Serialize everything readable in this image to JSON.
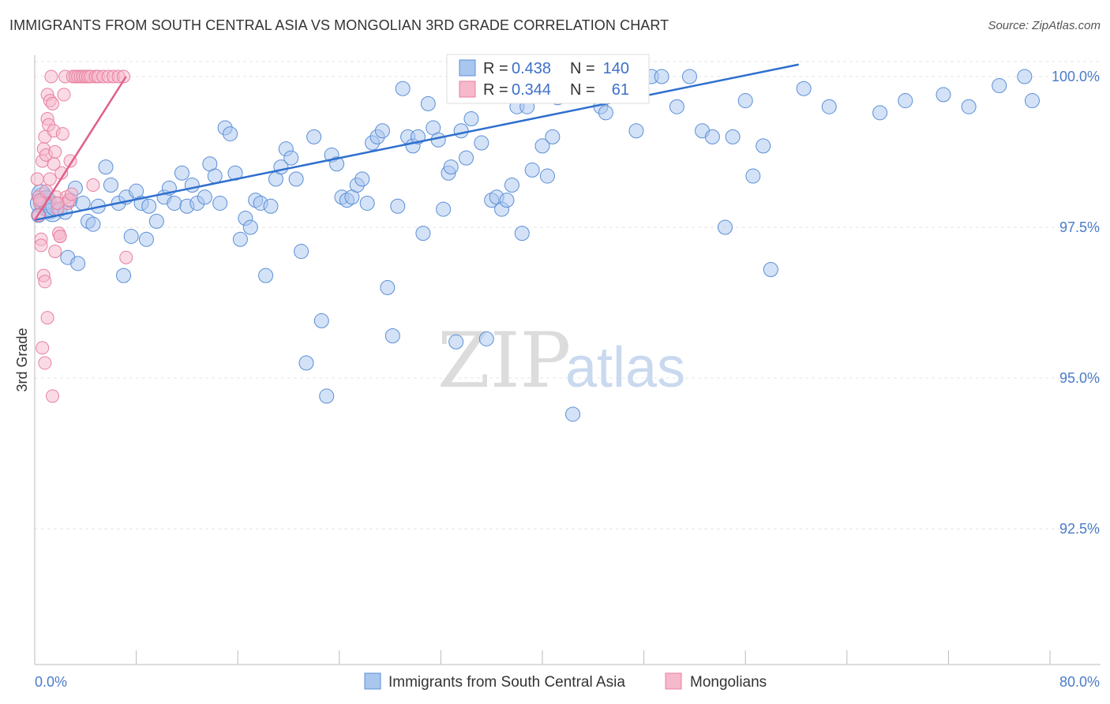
{
  "title": "IMMIGRANTS FROM SOUTH CENTRAL ASIA VS MONGOLIAN 3RD GRADE CORRELATION CHART",
  "source": "Source: ZipAtlas.com",
  "watermark": {
    "zip": "ZIP",
    "atlas": "atlas"
  },
  "colors": {
    "blue_fill": "#a9c6ef",
    "blue_stroke": "#5b8fd6",
    "blue_line": "#2f6fce",
    "pink_fill": "#f6b8cb",
    "pink_stroke": "#e8809f",
    "pink_line": "#e0608a",
    "grid": "#e6e6e6",
    "tick_text": "#4a7cc9"
  },
  "stats": {
    "blue": {
      "r_label": "R =",
      "r_value": "0.438",
      "n_label": "N =",
      "n_value": "140"
    },
    "pink": {
      "r_label": "R =",
      "r_value": "0.344",
      "n_label": "N =",
      "n_value": "61"
    }
  },
  "chart_data": {
    "type": "scatter",
    "title": "IMMIGRANTS FROM SOUTH CENTRAL ASIA VS MONGOLIAN 3RD GRADE CORRELATION CHART",
    "xlabel": "",
    "ylabel": "3rd Grade",
    "xlim": [
      0,
      80
    ],
    "ylim": [
      90.1,
      100.2
    ],
    "x_tick_labels": [
      "0.0%",
      "80.0%"
    ],
    "y_ticks": [
      100.0,
      97.5,
      95.0,
      92.5
    ],
    "y_tick_labels": [
      "100.0%",
      "97.5%",
      "95.0%",
      "92.5%"
    ],
    "grid": true,
    "legend_position": "bottom-center",
    "series": [
      {
        "name": "Immigrants from South Central Asia",
        "color": "#a9c6ef",
        "trend": {
          "x": [
            0,
            60.2
          ],
          "y": [
            97.62,
            100.2
          ]
        },
        "points": [
          [
            0.4,
            97.9
          ],
          [
            0.6,
            98.0
          ],
          [
            0.8,
            97.85
          ],
          [
            1.0,
            97.9
          ],
          [
            1.2,
            97.8
          ],
          [
            0.5,
            98.05
          ],
          [
            0.9,
            97.95
          ],
          [
            1.4,
            97.75
          ],
          [
            0.3,
            97.7
          ],
          [
            1.6,
            97.85
          ],
          [
            2.0,
            97.8
          ],
          [
            2.4,
            97.75
          ],
          [
            2.8,
            97.95
          ],
          [
            3.2,
            98.15
          ],
          [
            3.8,
            97.9
          ],
          [
            2.6,
            97.0
          ],
          [
            3.4,
            96.9
          ],
          [
            4.2,
            97.6
          ],
          [
            4.6,
            97.55
          ],
          [
            5.0,
            97.85
          ],
          [
            5.6,
            98.5
          ],
          [
            6.0,
            98.2
          ],
          [
            6.6,
            97.9
          ],
          [
            7.2,
            98.0
          ],
          [
            7.6,
            97.35
          ],
          [
            7.0,
            96.7
          ],
          [
            8.0,
            98.1
          ],
          [
            8.4,
            97.9
          ],
          [
            9.0,
            97.85
          ],
          [
            9.6,
            97.6
          ],
          [
            8.8,
            97.3
          ],
          [
            10.2,
            98.0
          ],
          [
            10.6,
            98.15
          ],
          [
            11.0,
            97.9
          ],
          [
            11.6,
            98.4
          ],
          [
            12.0,
            97.85
          ],
          [
            12.4,
            98.2
          ],
          [
            12.8,
            97.9
          ],
          [
            13.4,
            98.0
          ],
          [
            13.8,
            98.55
          ],
          [
            14.2,
            98.35
          ],
          [
            14.6,
            97.9
          ],
          [
            15.0,
            99.15
          ],
          [
            15.4,
            99.05
          ],
          [
            15.8,
            98.4
          ],
          [
            16.2,
            97.3
          ],
          [
            16.6,
            97.65
          ],
          [
            17.0,
            97.5
          ],
          [
            17.4,
            97.95
          ],
          [
            17.8,
            97.9
          ],
          [
            18.2,
            96.7
          ],
          [
            18.6,
            97.85
          ],
          [
            19.0,
            98.3
          ],
          [
            19.4,
            98.5
          ],
          [
            19.8,
            98.8
          ],
          [
            20.2,
            98.65
          ],
          [
            20.6,
            98.3
          ],
          [
            21.0,
            97.1
          ],
          [
            21.4,
            95.25
          ],
          [
            22.0,
            99.0
          ],
          [
            22.6,
            95.95
          ],
          [
            23.0,
            94.7
          ],
          [
            23.4,
            98.7
          ],
          [
            23.8,
            98.55
          ],
          [
            24.2,
            98.0
          ],
          [
            24.6,
            97.95
          ],
          [
            25.0,
            98.0
          ],
          [
            25.4,
            98.2
          ],
          [
            25.8,
            98.3
          ],
          [
            26.2,
            97.9
          ],
          [
            26.6,
            98.9
          ],
          [
            27.0,
            99.0
          ],
          [
            27.4,
            99.1
          ],
          [
            27.8,
            96.5
          ],
          [
            28.2,
            95.7
          ],
          [
            28.6,
            97.85
          ],
          [
            29.0,
            99.8
          ],
          [
            29.4,
            99.0
          ],
          [
            29.8,
            98.85
          ],
          [
            30.2,
            99.0
          ],
          [
            30.6,
            97.4
          ],
          [
            31.0,
            99.55
          ],
          [
            31.4,
            99.15
          ],
          [
            31.8,
            98.95
          ],
          [
            32.2,
            97.8
          ],
          [
            32.6,
            98.4
          ],
          [
            32.8,
            98.5
          ],
          [
            33.2,
            95.6
          ],
          [
            33.6,
            99.1
          ],
          [
            34.0,
            98.65
          ],
          [
            34.4,
            99.3
          ],
          [
            34.8,
            99.85
          ],
          [
            35.2,
            98.9
          ],
          [
            35.6,
            95.65
          ],
          [
            36.0,
            97.95
          ],
          [
            36.4,
            98.0
          ],
          [
            36.8,
            97.8
          ],
          [
            37.2,
            97.95
          ],
          [
            37.6,
            98.2
          ],
          [
            38.0,
            99.5
          ],
          [
            38.4,
            97.4
          ],
          [
            38.8,
            99.5
          ],
          [
            39.2,
            98.45
          ],
          [
            39.6,
            100.0
          ],
          [
            40.0,
            98.85
          ],
          [
            40.4,
            98.35
          ],
          [
            40.8,
            99.0
          ],
          [
            41.2,
            99.65
          ],
          [
            42.0,
            99.75
          ],
          [
            42.4,
            94.4
          ],
          [
            43.0,
            100.0
          ],
          [
            43.4,
            100.0
          ],
          [
            43.8,
            100.0
          ],
          [
            44.2,
            100.0
          ],
          [
            44.6,
            99.5
          ],
          [
            45.0,
            99.4
          ],
          [
            45.6,
            100.0
          ],
          [
            47.0,
            100.0
          ],
          [
            47.4,
            99.1
          ],
          [
            48.6,
            100.0
          ],
          [
            49.4,
            100.0
          ],
          [
            50.6,
            99.5
          ],
          [
            51.6,
            100.0
          ],
          [
            52.6,
            99.1
          ],
          [
            53.4,
            99.0
          ],
          [
            54.4,
            97.5
          ],
          [
            55.0,
            99.0
          ],
          [
            56.0,
            99.6
          ],
          [
            56.6,
            98.35
          ],
          [
            57.4,
            98.85
          ],
          [
            58.0,
            96.8
          ],
          [
            60.6,
            99.8
          ],
          [
            62.6,
            99.5
          ],
          [
            66.6,
            99.4
          ],
          [
            68.6,
            99.6
          ],
          [
            71.6,
            99.7
          ],
          [
            73.6,
            99.5
          ],
          [
            76.0,
            99.85
          ],
          [
            78.0,
            100.0
          ],
          [
            78.6,
            99.6
          ]
        ]
      },
      {
        "name": "Mongolians",
        "color": "#f6b8cb",
        "trend": {
          "x": [
            0,
            7.2
          ],
          "y": [
            97.62,
            100.0
          ]
        },
        "points": [
          [
            0.2,
            98.3
          ],
          [
            0.3,
            98.0
          ],
          [
            0.4,
            97.9
          ],
          [
            0.5,
            97.3
          ],
          [
            0.5,
            97.2
          ],
          [
            0.6,
            98.6
          ],
          [
            0.7,
            98.8
          ],
          [
            0.8,
            99.0
          ],
          [
            0.9,
            98.7
          ],
          [
            1.0,
            99.3
          ],
          [
            1.0,
            99.7
          ],
          [
            1.1,
            99.2
          ],
          [
            1.2,
            99.6
          ],
          [
            1.3,
            100.0
          ],
          [
            1.4,
            99.55
          ],
          [
            1.5,
            99.1
          ],
          [
            1.6,
            98.75
          ],
          [
            1.7,
            98.0
          ],
          [
            1.8,
            97.8
          ],
          [
            1.9,
            97.4
          ],
          [
            2.0,
            97.35
          ],
          [
            2.1,
            98.4
          ],
          [
            2.2,
            99.05
          ],
          [
            2.3,
            99.7
          ],
          [
            2.4,
            100.0
          ],
          [
            2.5,
            98.0
          ],
          [
            2.6,
            97.9
          ],
          [
            2.7,
            97.95
          ],
          [
            2.8,
            98.6
          ],
          [
            2.9,
            98.05
          ],
          [
            3.0,
            100.0
          ],
          [
            3.2,
            100.0
          ],
          [
            3.4,
            100.0
          ],
          [
            3.6,
            100.0
          ],
          [
            3.8,
            100.0
          ],
          [
            4.0,
            100.0
          ],
          [
            4.2,
            100.0
          ],
          [
            4.4,
            100.0
          ],
          [
            4.6,
            98.2
          ],
          [
            4.8,
            100.0
          ],
          [
            5.0,
            100.0
          ],
          [
            5.4,
            100.0
          ],
          [
            5.8,
            100.0
          ],
          [
            6.2,
            100.0
          ],
          [
            6.6,
            100.0
          ],
          [
            7.0,
            100.0
          ],
          [
            0.7,
            96.7
          ],
          [
            0.8,
            96.6
          ],
          [
            1.0,
            96.0
          ],
          [
            0.6,
            95.5
          ],
          [
            0.8,
            95.25
          ],
          [
            1.4,
            94.7
          ],
          [
            1.6,
            97.1
          ],
          [
            2.0,
            97.35
          ],
          [
            7.2,
            97.0
          ],
          [
            0.3,
            97.7
          ],
          [
            0.4,
            97.95
          ],
          [
            0.9,
            98.1
          ],
          [
            1.2,
            98.3
          ],
          [
            1.5,
            98.55
          ],
          [
            1.8,
            97.9
          ]
        ]
      }
    ]
  },
  "legend": {
    "blue_label": "Immigrants from South Central Asia",
    "pink_label": "Mongolians"
  }
}
